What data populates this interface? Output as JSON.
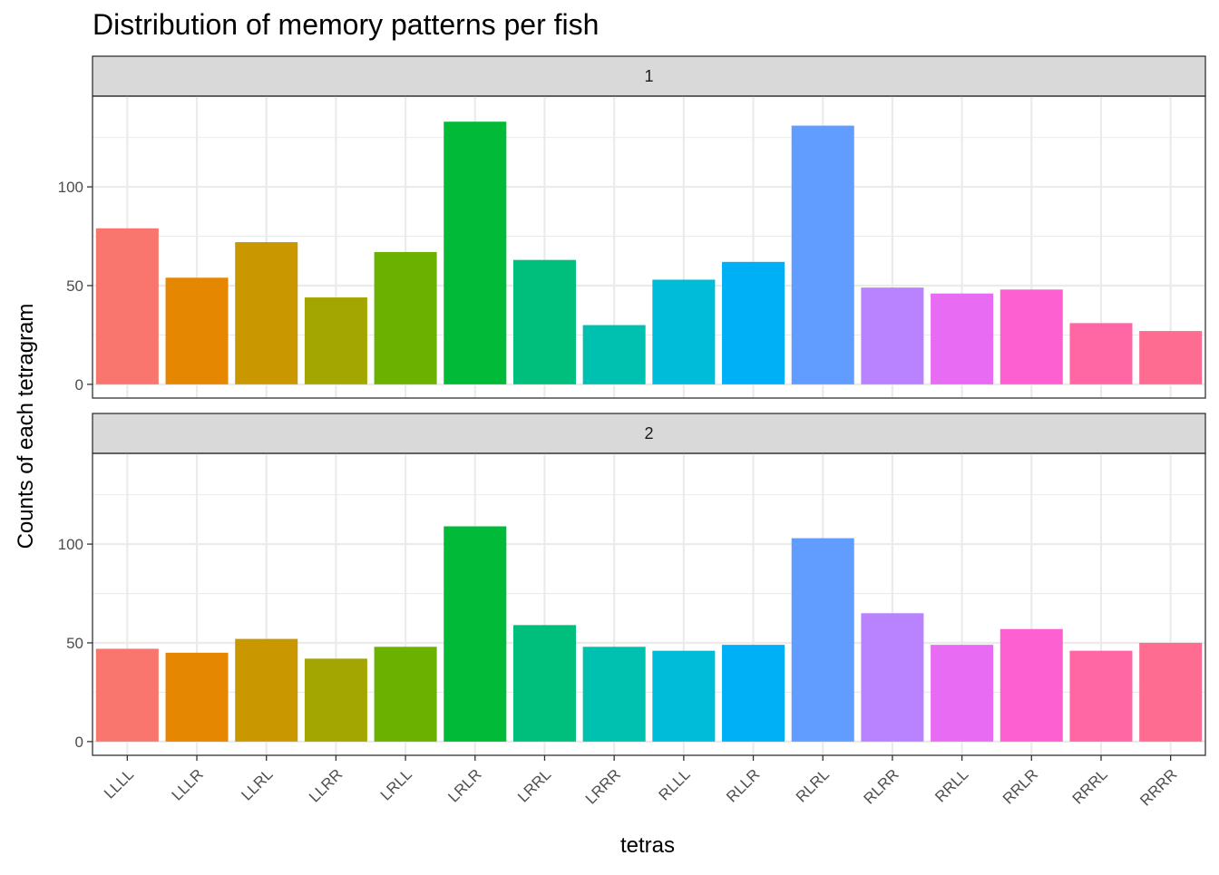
{
  "chart_data": {
    "type": "bar",
    "title": "Distribution of memory patterns per fish",
    "xlabel": "tetras",
    "ylabel": "Counts of each tetragram",
    "ylim": [
      0,
      139
    ],
    "yticks": [
      0,
      50,
      100
    ],
    "grid": true,
    "legend": "none",
    "categories": [
      "LLLL",
      "LLLR",
      "LLRL",
      "LLRR",
      "LRLL",
      "LRLR",
      "LRRL",
      "LRRR",
      "RLLL",
      "RLLR",
      "RLRL",
      "RLRR",
      "RRLL",
      "RRLR",
      "RRRL",
      "RRRR"
    ],
    "colors": [
      "#F8766D",
      "#E58700",
      "#C99800",
      "#A3A500",
      "#6BB100",
      "#00BA38",
      "#00BF7D",
      "#00C0AF",
      "#00BCD8",
      "#00B0F6",
      "#619CFF",
      "#B983FF",
      "#E76BF3",
      "#FD61D1",
      "#FF67A4",
      "#FF6C91"
    ],
    "panels": [
      {
        "strip": "1",
        "values": [
          79,
          54,
          72,
          44,
          67,
          133,
          63,
          30,
          53,
          62,
          131,
          49,
          46,
          48,
          31,
          27
        ]
      },
      {
        "strip": "2",
        "values": [
          47,
          45,
          52,
          42,
          48,
          109,
          59,
          48,
          46,
          49,
          103,
          65,
          49,
          57,
          46,
          50
        ]
      }
    ]
  }
}
